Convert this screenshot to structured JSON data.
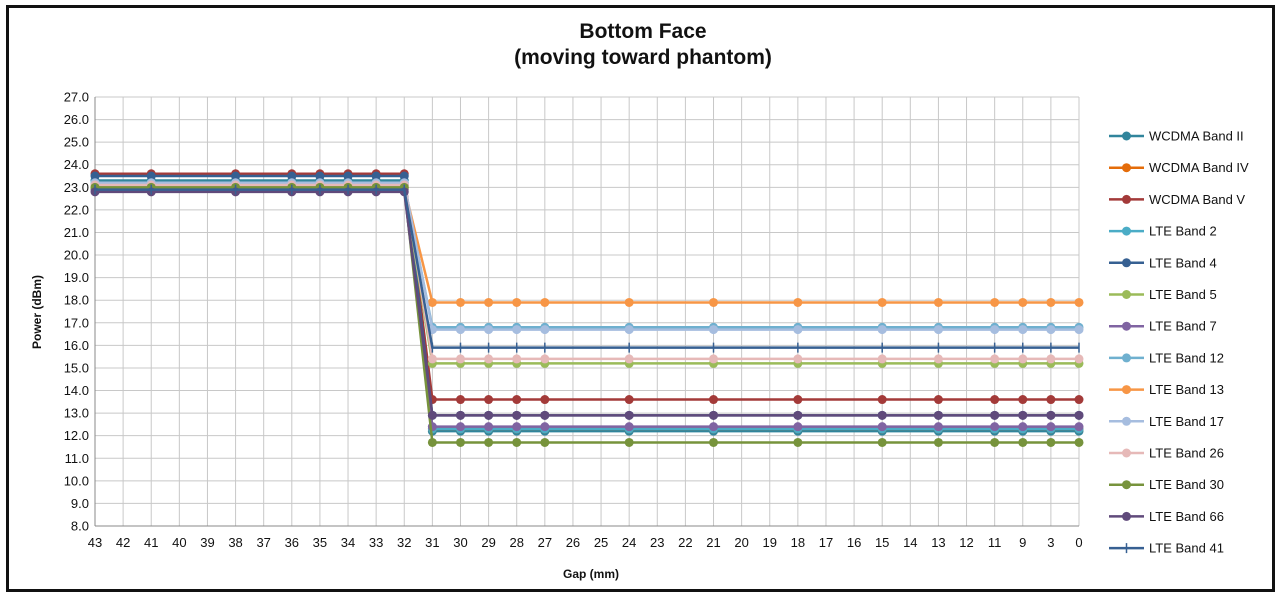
{
  "chart_data": {
    "type": "line",
    "title": [
      "Bottom Face",
      "(moving toward phantom)"
    ],
    "xlabel": "Gap (mm)",
    "ylabel": "Power (dBm)",
    "ylim": [
      8.0,
      27.0
    ],
    "ytick_step": 1.0,
    "grid": true,
    "legend_position": "right",
    "x": [
      "43",
      "42",
      "41",
      "40",
      "39",
      "38",
      "37",
      "36",
      "35",
      "34",
      "33",
      "32",
      "31",
      "30",
      "29",
      "28",
      "27",
      "26",
      "25",
      "24",
      "23",
      "22",
      "21",
      "20",
      "19",
      "18",
      "17",
      "16",
      "15",
      "14",
      "13",
      "12",
      "11",
      "9",
      "3",
      "0"
    ],
    "marker_x": [
      "43",
      "41",
      "38",
      "36",
      "35",
      "34",
      "33",
      "32",
      "31",
      "30",
      "29",
      "28",
      "27",
      "24",
      "21",
      "18",
      "15",
      "13",
      "11",
      "9",
      "3",
      "0"
    ],
    "series": [
      {
        "name": "WCDMA Band II",
        "color": "#31859c",
        "marker": "circle",
        "far": 23.3,
        "near": 12.2
      },
      {
        "name": "WCDMA Band IV",
        "color": "#e46c0a",
        "marker": "circle",
        "far": 23.1,
        "near": 12.3
      },
      {
        "name": "WCDMA Band V",
        "color": "#a33a39",
        "marker": "circle",
        "far": 23.6,
        "near": 13.6
      },
      {
        "name": "LTE Band 2",
        "color": "#4bacc6",
        "marker": "circle",
        "far": 23.2,
        "near": 12.3
      },
      {
        "name": "LTE Band 4",
        "color": "#366092",
        "marker": "circle",
        "far": 23.5,
        "near": 12.9
      },
      {
        "name": "LTE Band 5",
        "color": "#9bbb59",
        "marker": "circle",
        "far": 23.0,
        "near": 15.2
      },
      {
        "name": "LTE Band 7",
        "color": "#8064a2",
        "marker": "circle",
        "far": 22.9,
        "near": 12.4
      },
      {
        "name": "LTE Band 12",
        "color": "#6fb0cf",
        "marker": "circle",
        "far": 23.1,
        "near": 16.8
      },
      {
        "name": "LTE Band 13",
        "color": "#f79646",
        "marker": "circle",
        "far": 23.0,
        "near": 17.9
      },
      {
        "name": "LTE Band 17",
        "color": "#a6bddf",
        "marker": "circle",
        "far": 23.2,
        "near": 16.7
      },
      {
        "name": "LTE Band 26",
        "color": "#e6b9b8",
        "marker": "circle",
        "far": 23.1,
        "near": 15.4
      },
      {
        "name": "LTE Band 30",
        "color": "#77933c",
        "marker": "circle",
        "far": 23.0,
        "near": 11.7
      },
      {
        "name": "LTE Band 66",
        "color": "#604a7b",
        "marker": "circle",
        "far": 22.8,
        "near": 12.9
      },
      {
        "name": "LTE Band 41",
        "color": "#376092",
        "marker": "plus",
        "far": 22.9,
        "near": 15.9
      }
    ]
  }
}
